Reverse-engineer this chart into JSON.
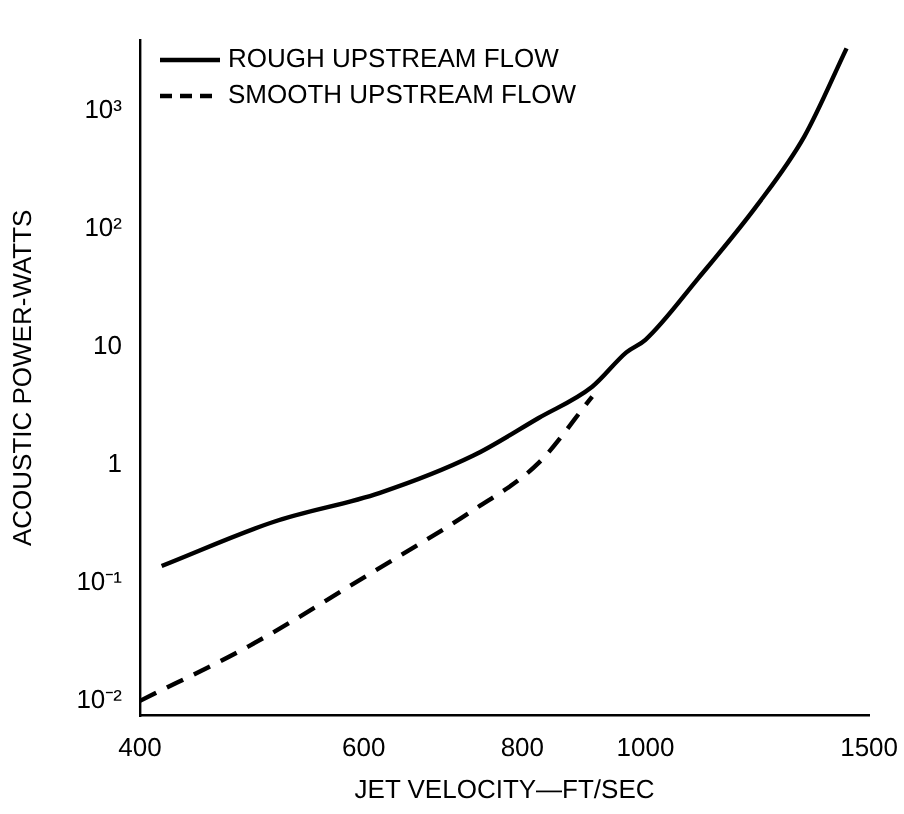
{
  "chart_data": {
    "type": "line",
    "xlabel": "JET VELOCITY—FT/SEC",
    "ylabel": "ACOUSTIC POWER-WATTS",
    "log": "xy",
    "xlim": [
      400,
      1500
    ],
    "xticks": [
      400,
      600,
      800,
      1000,
      1500
    ],
    "ylim": [
      0.0075,
      4000
    ],
    "yticks": [
      {
        "value": 0.01,
        "label": "10⁻²"
      },
      {
        "value": 0.1,
        "label": "10⁻¹"
      },
      1,
      10,
      {
        "value": 100,
        "label": "10²"
      },
      {
        "value": 1000,
        "label": "10³"
      }
    ],
    "grid": false,
    "legend": "top left",
    "marker": "none",
    "series": [
      {
        "name": "ROUGH UPSTREAM FLOW",
        "color": "#000000",
        "line_style": "solid",
        "x": [
          416,
          510,
          618,
          732,
          824,
          908,
          966,
          1000,
          1100,
          1225,
          1334,
          1440
        ],
        "values": [
          0.139,
          0.33,
          0.58,
          1.2,
          2.5,
          4.6,
          9,
          11.5,
          38,
          160,
          610,
          3400
        ]
      },
      {
        "name": "SMOOTH UPSTREAM FLOW",
        "color": "#000000",
        "line_style": "dashed",
        "x": [
          400,
          487,
          611,
          731,
          824,
          908
        ],
        "values": [
          0.01,
          0.029,
          0.125,
          0.41,
          1.04,
          3.8
        ]
      }
    ]
  }
}
